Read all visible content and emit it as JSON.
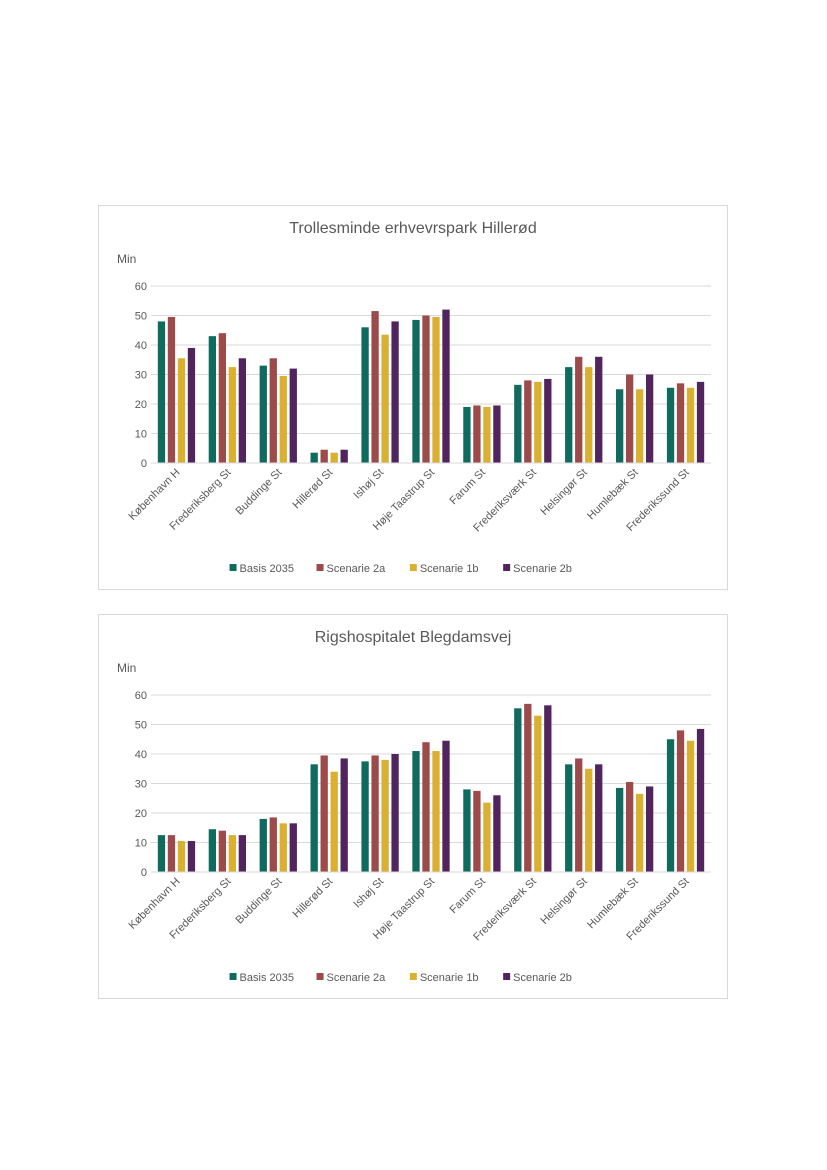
{
  "colors": {
    "Basis 2035": "#0f6b5e",
    "Scenarie 2a": "#9c4a4a",
    "Scenarie 1b": "#d9b02f",
    "Scenarie 2b": "#52245e"
  },
  "chart_data": [
    {
      "type": "bar",
      "title": "Trollesminde erhvevrspark Hillerød",
      "ylabel": "Min",
      "ylim": [
        0,
        60
      ],
      "yticks": [
        0,
        10,
        20,
        30,
        40,
        50,
        60
      ],
      "grid": true,
      "legend": "bottom",
      "categories": [
        "København H",
        "Frederiksberg St",
        "Buddinge St",
        "Hillerød St",
        "Ishøj St",
        "Høje Taastrup St",
        "Farum St",
        "Frederiksværk St",
        "Helsingør St",
        "Humlebæk St",
        "Frederikssund St"
      ],
      "series": [
        {
          "name": "Basis 2035",
          "values": [
            48,
            43,
            33,
            3.5,
            46,
            48.5,
            19,
            26.5,
            32.5,
            25,
            25.5
          ]
        },
        {
          "name": "Scenarie 2a",
          "values": [
            49.5,
            44,
            35.5,
            4.5,
            51.5,
            50,
            19.5,
            28,
            36,
            30,
            27
          ]
        },
        {
          "name": "Scenarie 1b",
          "values": [
            35.5,
            32.5,
            29.5,
            3.5,
            43.5,
            49.5,
            19,
            27.5,
            32.5,
            25,
            25.5
          ]
        },
        {
          "name": "Scenarie 2b",
          "values": [
            39,
            35.5,
            32,
            4.5,
            48,
            52,
            19.5,
            28.5,
            36,
            30,
            27.5
          ]
        }
      ]
    },
    {
      "type": "bar",
      "title": "Rigshospitalet Blegdamsvej",
      "ylabel": "Min",
      "ylim": [
        0,
        60
      ],
      "yticks": [
        0,
        10,
        20,
        30,
        40,
        50,
        60
      ],
      "grid": true,
      "legend": "bottom",
      "categories": [
        "København H",
        "Frederiksberg St",
        "Buddinge St",
        "Hillerød St",
        "Ishøj St",
        "Høje Taastrup St",
        "Farum St",
        "Frederiksværk St",
        "Helsingør St",
        "Humlebæk St",
        "Frederikssund St"
      ],
      "series": [
        {
          "name": "Basis 2035",
          "values": [
            12.5,
            14.5,
            18,
            36.5,
            37.5,
            41,
            28,
            55.5,
            36.5,
            28.5,
            45
          ]
        },
        {
          "name": "Scenarie 2a",
          "values": [
            12.5,
            14,
            18.5,
            39.5,
            39.5,
            44,
            27.5,
            57,
            38.5,
            30.5,
            48
          ]
        },
        {
          "name": "Scenarie 1b",
          "values": [
            10.5,
            12.5,
            16.5,
            34,
            38,
            41,
            23.5,
            53,
            35,
            26.5,
            44.5
          ]
        },
        {
          "name": "Scenarie 2b",
          "values": [
            10.5,
            12.5,
            16.5,
            38.5,
            40,
            44.5,
            26,
            56.5,
            36.5,
            29,
            48.5
          ]
        }
      ]
    }
  ]
}
